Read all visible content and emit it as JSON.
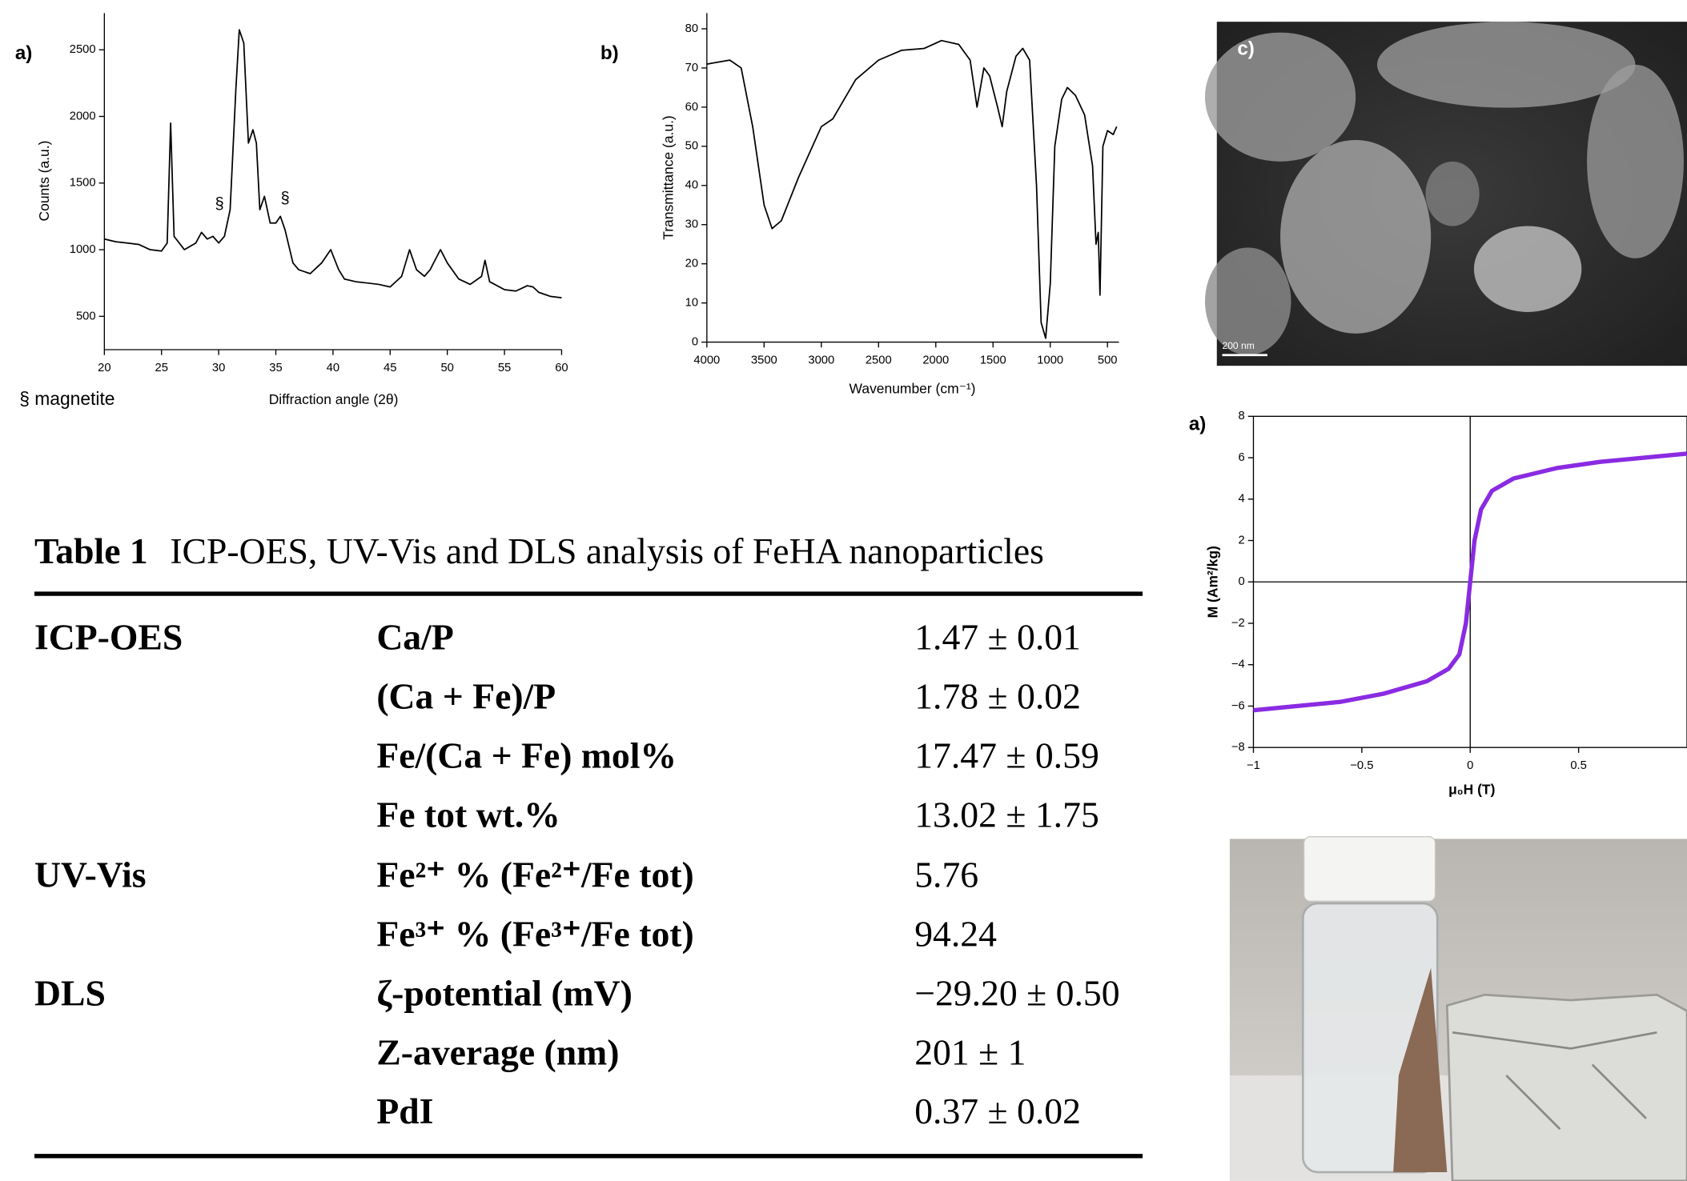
{
  "chart_data": [
    {
      "type": "line",
      "panel_label": "a)",
      "y_label": "Counts (a.u.)",
      "x_label": "Diffraction angle (2θ)",
      "legend_note": "§ magnetite",
      "annotations": [
        "§",
        "§"
      ],
      "color": "#000000",
      "xlim": [
        20,
        60
      ],
      "ylim": [
        250,
        2775
      ],
      "xticks": [
        20,
        25,
        30,
        35,
        40,
        45,
        50,
        55,
        60
      ],
      "yticks": [
        500,
        1000,
        1500,
        2000,
        2500
      ],
      "x": [
        20,
        21,
        22,
        23,
        24,
        25,
        25.5,
        25.8,
        26.1,
        27,
        28,
        28.5,
        29,
        29.5,
        30,
        30.5,
        31,
        31.5,
        31.8,
        32.2,
        32.6,
        33,
        33.3,
        33.6,
        34,
        34.5,
        35,
        35.4,
        35.8,
        36.5,
        37,
        38,
        39,
        39.8,
        40.5,
        41,
        42,
        43,
        44,
        45,
        46,
        46.7,
        47.3,
        48,
        48.5,
        49.4,
        50,
        51,
        52,
        53,
        53.3,
        53.7,
        55,
        56,
        57,
        57.5,
        58,
        59,
        60
      ],
      "values": [
        1080,
        1060,
        1050,
        1040,
        1000,
        990,
        1050,
        1950,
        1100,
        1000,
        1050,
        1130,
        1080,
        1100,
        1050,
        1100,
        1300,
        2200,
        2650,
        2550,
        1800,
        1900,
        1800,
        1300,
        1400,
        1200,
        1200,
        1250,
        1150,
        900,
        850,
        820,
        900,
        1000,
        850,
        780,
        760,
        750,
        740,
        720,
        800,
        1000,
        850,
        800,
        850,
        1000,
        900,
        780,
        740,
        800,
        920,
        760,
        700,
        690,
        730,
        720,
        680,
        650,
        640
      ]
    },
    {
      "type": "line",
      "panel_label": "b)",
      "y_label": "Transmittance (a.u.)",
      "x_label": "Wavenumber (cm⁻¹)",
      "color": "#000000",
      "xlim": [
        4000,
        400
      ],
      "ylim": [
        0,
        84
      ],
      "xticks": [
        4000,
        3500,
        3000,
        2500,
        2000,
        1500,
        1000,
        500
      ],
      "yticks": [
        0,
        10,
        20,
        30,
        40,
        50,
        60,
        70,
        80
      ],
      "x": [
        4000,
        3800,
        3700,
        3600,
        3500,
        3430,
        3350,
        3200,
        3000,
        2900,
        2700,
        2500,
        2300,
        2100,
        1950,
        1800,
        1700,
        1640,
        1580,
        1530,
        1460,
        1420,
        1380,
        1300,
        1240,
        1180,
        1120,
        1080,
        1040,
        1000,
        960,
        900,
        850,
        780,
        700,
        630,
        600,
        580,
        565,
        540,
        500,
        450,
        420
      ],
      "values": [
        71,
        72,
        70,
        55,
        35,
        29,
        31,
        42,
        55,
        57,
        67,
        72,
        74.5,
        75,
        77,
        76,
        72,
        60,
        70,
        68,
        60,
        55,
        64,
        73,
        75,
        72,
        40,
        5,
        1,
        15,
        50,
        62,
        65,
        63,
        58,
        45,
        25,
        28,
        12,
        50,
        54,
        53,
        55
      ]
    },
    {
      "type": "line",
      "panel_label": "a)",
      "y_label": "M (Am²/kg)",
      "x_label": "μ₀H (T)",
      "color": "#8a2be2",
      "box": true,
      "zero_lines": true,
      "xlim": [
        -1,
        1
      ],
      "ylim": [
        -8,
        8
      ],
      "xticks": [
        {
          "value": -1,
          "label": "−1"
        },
        {
          "value": -0.5,
          "label": "−0.5"
        },
        0,
        0.5
      ],
      "yticks": [
        {
          "value": -8,
          "label": "−8"
        },
        {
          "value": -6,
          "label": "−6"
        },
        {
          "value": -4,
          "label": "−4"
        },
        {
          "value": -2,
          "label": "−2"
        },
        0,
        2,
        4,
        6,
        8
      ],
      "x": [
        -1,
        -0.8,
        -0.6,
        -0.4,
        -0.2,
        -0.1,
        -0.05,
        -0.02,
        0,
        0.02,
        0.05,
        0.1,
        0.2,
        0.4,
        0.6,
        0.8,
        1
      ],
      "values": [
        -6.2,
        -6.0,
        -5.8,
        -5.4,
        -4.8,
        -4.2,
        -3.5,
        -2,
        0,
        2,
        3.5,
        4.4,
        5.0,
        5.5,
        5.8,
        6.0,
        6.2
      ]
    }
  ],
  "images": {
    "sem_label": "c)",
    "sem_scale": "200 nm"
  },
  "table": {
    "caption_label": "Table 1",
    "caption": "ICP-OES, UV-Vis and DLS analysis of FeHA nanoparticles",
    "rows": [
      [
        "ICP-OES",
        "Ca/P",
        "1.47 ± 0.01"
      ],
      [
        null,
        "(Ca + Fe)/P",
        "1.78 ± 0.02"
      ],
      [
        null,
        "Fe/(Ca + Fe) mol%",
        "17.47 ± 0.59"
      ],
      [
        null,
        "Fe tot wt.%",
        "13.02 ± 1.75"
      ],
      [
        "UV-Vis",
        "Fe²⁺ % (Fe²⁺/Fe tot)",
        "5.76"
      ],
      [
        null,
        "Fe³⁺ % (Fe³⁺/Fe tot)",
        "94.24"
      ],
      [
        "DLS",
        "ζ-potential (mV)",
        "−29.20 ± 0.50"
      ],
      [
        null,
        "Z-average (nm)",
        "201 ± 1"
      ],
      [
        null,
        "PdI",
        "0.37 ± 0.02"
      ]
    ]
  }
}
